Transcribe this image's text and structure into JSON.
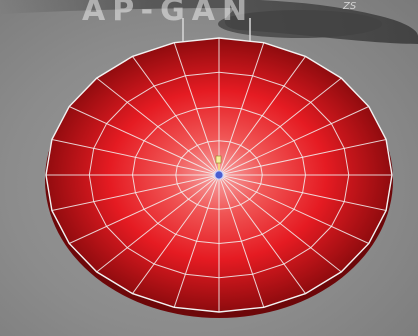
{
  "viewport": {
    "watermark": {
      "logo_text": "AP-GAN",
      "badge": "ZS"
    },
    "mesh": {
      "name": "disc",
      "color": "#e8141c",
      "highlight": "#f79090",
      "edge_color": "#f2f2f2",
      "radial_segments": 24,
      "ring_count": 4
    },
    "gizmo_icon": "pivot-handle-icon",
    "background_color": "#8f8f8f"
  }
}
